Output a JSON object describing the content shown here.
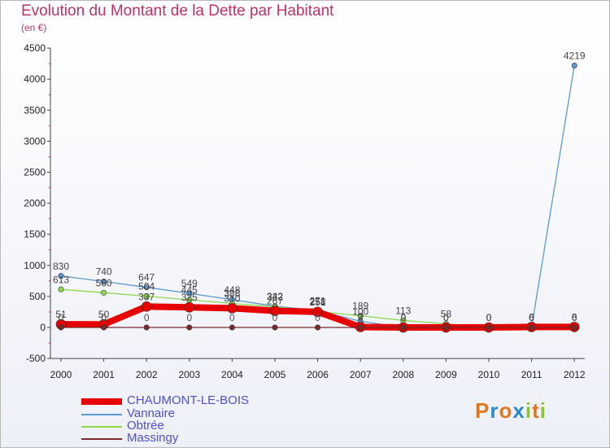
{
  "chart_data": {
    "type": "line",
    "title": "Evolution du Montant de la Dette par Habitant",
    "unit": "(en €)",
    "x": [
      "2000",
      "2001",
      "2002",
      "2003",
      "2004",
      "2005",
      "2006",
      "2007",
      "2008",
      "2009",
      "2010",
      "2011",
      "2012"
    ],
    "ylim": [
      -500,
      4500
    ],
    "yticks": [
      -500,
      0,
      500,
      1000,
      1500,
      2000,
      2500,
      3000,
      3500,
      4000,
      4500
    ],
    "series": [
      {
        "name": "CHAUMONT-LE-BOIS",
        "color": "#e80000",
        "values": [
          51,
          50,
          337,
          325,
          310,
          267,
          251,
          7,
          0,
          0,
          0,
          8,
          8
        ]
      },
      {
        "name": "Vannaire",
        "color": "#5a9ad0",
        "values": [
          830,
          740,
          647,
          549,
          448,
          342,
          271,
          100,
          0,
          0,
          0,
          0,
          4219
        ]
      },
      {
        "name": "Obtrée",
        "color": "#8ed850",
        "values": [
          613,
          560,
          504,
          445,
          386,
          332,
          258,
          189,
          113,
          58,
          0,
          0,
          0
        ]
      },
      {
        "name": "Massingy",
        "color": "#7a2a2a",
        "values": [
          0,
          0,
          0,
          0,
          0,
          0,
          0,
          0,
          0,
          0,
          0,
          0,
          0
        ]
      }
    ]
  },
  "logo": {
    "text": "Proxiti"
  }
}
